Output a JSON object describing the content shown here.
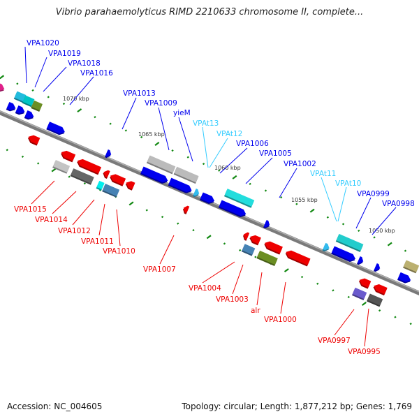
{
  "title": "Vibrio parahaemolyticus RIMD 2210633 chromosome II, complete...",
  "footer": {
    "accession": "Accession: NC_004605",
    "summary": "Topology: circular; Length: 1,877,212 bp; Genes: 1,769"
  },
  "colors": {
    "forward_label": "#0000ee",
    "reverse_label": "#ee0000",
    "trna_label": "#33ccff",
    "backbone": "#888888",
    "tick": "#118811"
  },
  "scale_labels": [
    "1070 kbp",
    "1065 kbp",
    "1060 kbp",
    "1055 kbp",
    "1050 kbp"
  ],
  "forward_labels": [
    "VPA1020",
    "VPA1019",
    "VPA1018",
    "VPA1016",
    "VPA1013",
    "VPA1009",
    "yieM",
    "VPAt13",
    "VPAt12",
    "VPA1006",
    "VPA1005",
    "VPA1002",
    "VPAt11",
    "VPAt10",
    "VPA0999",
    "VPA0998"
  ],
  "reverse_labels": [
    "VPA1015",
    "VPA1014",
    "VPA1012",
    "VPA1011",
    "VPA1010",
    "VPA1007",
    "VPA1004",
    "VPA1003",
    "alr",
    "VPA1000",
    "VPA0997",
    "VPA0995"
  ]
}
